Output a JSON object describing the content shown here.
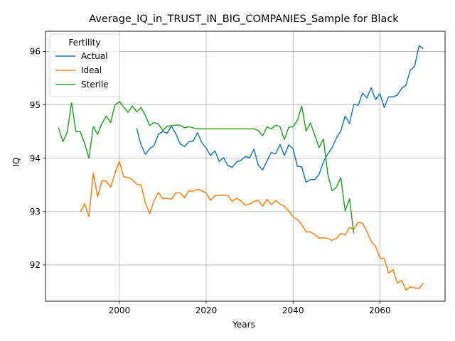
{
  "chart_data": {
    "type": "line",
    "title": "Average_IQ_in_TRUST_IN_BIG_COMPANIES_Sample for Black",
    "xlabel": "Years",
    "ylabel": "IQ",
    "xlim": [
      1983,
      2075
    ],
    "ylim": [
      91.32,
      96.38
    ],
    "xticks": [
      2000,
      2020,
      2040,
      2060
    ],
    "yticks": [
      92,
      93,
      94,
      95,
      96
    ],
    "grid": true,
    "legend": {
      "title": "Fertility",
      "position": "top-left"
    },
    "series": [
      {
        "name": "Actual",
        "color": "#1f77b4",
        "x": [
          2004,
          2005,
          2006,
          2007,
          2008,
          2009,
          2010,
          2011,
          2012,
          2013,
          2014,
          2015,
          2016,
          2017,
          2018,
          2019,
          2020,
          2021,
          2022,
          2023,
          2024,
          2025,
          2026,
          2027,
          2028,
          2029,
          2030,
          2031,
          2032,
          2033,
          2034,
          2035,
          2036,
          2037,
          2038,
          2039,
          2040,
          2041,
          2042,
          2043,
          2044,
          2045,
          2046,
          2047,
          2048,
          2049,
          2050,
          2051,
          2052,
          2053,
          2054,
          2055,
          2056,
          2057,
          2058,
          2059,
          2060,
          2061,
          2062,
          2063,
          2064,
          2065,
          2066,
          2067,
          2068,
          2069,
          2070
        ],
        "y": [
          94.56,
          94.25,
          94.07,
          94.18,
          94.24,
          94.45,
          94.5,
          94.47,
          94.6,
          94.46,
          94.27,
          94.22,
          94.31,
          94.32,
          94.48,
          94.29,
          94.19,
          94.05,
          94.14,
          93.94,
          94.01,
          93.86,
          93.83,
          93.93,
          93.96,
          94.03,
          94.01,
          94.17,
          93.87,
          93.78,
          93.95,
          94.11,
          94.08,
          94.26,
          94.05,
          94.25,
          94.18,
          93.85,
          93.84,
          93.55,
          93.6,
          93.6,
          93.7,
          93.93,
          94.08,
          94.2,
          94.38,
          94.51,
          94.79,
          94.65,
          95.01,
          94.99,
          95.22,
          95.13,
          95.32,
          95.1,
          95.21,
          94.95,
          95.15,
          95.15,
          95.18,
          95.31,
          95.37,
          95.65,
          95.72,
          96.11,
          96.05
        ]
      },
      {
        "name": "Ideal",
        "color": "#ff7f0e",
        "x": [
          1991,
          1992,
          1993,
          1994,
          1995,
          1996,
          1997,
          1998,
          1999,
          2000,
          2001,
          2002,
          2003,
          2004,
          2005,
          2006,
          2007,
          2008,
          2009,
          2010,
          2011,
          2012,
          2013,
          2014,
          2015,
          2016,
          2017,
          2018,
          2019,
          2020,
          2021,
          2022,
          2023,
          2024,
          2025,
          2026,
          2027,
          2028,
          2029,
          2030,
          2031,
          2032,
          2033,
          2034,
          2035,
          2036,
          2037,
          2038,
          2039,
          2040,
          2041,
          2042,
          2043,
          2044,
          2045,
          2046,
          2047,
          2048,
          2049,
          2050,
          2051,
          2052,
          2053,
          2054,
          2055,
          2056,
          2057,
          2058,
          2059,
          2060,
          2061,
          2062,
          2063,
          2064,
          2065,
          2066,
          2067,
          2068,
          2069,
          2070
        ],
        "y": [
          92.99,
          93.15,
          92.91,
          93.72,
          93.28,
          93.58,
          93.57,
          93.46,
          93.72,
          93.94,
          93.65,
          93.64,
          93.6,
          93.51,
          93.5,
          93.16,
          92.96,
          93.21,
          93.36,
          93.24,
          93.25,
          93.23,
          93.35,
          93.35,
          93.26,
          93.39,
          93.38,
          93.42,
          93.39,
          93.35,
          93.21,
          93.3,
          93.3,
          93.31,
          93.3,
          93.19,
          93.25,
          93.2,
          93.12,
          93.14,
          93.19,
          93.21,
          93.1,
          93.23,
          93.13,
          93.21,
          93.14,
          93.1,
          93.01,
          92.9,
          92.85,
          92.76,
          92.62,
          92.62,
          92.57,
          92.5,
          92.51,
          92.5,
          92.46,
          92.5,
          92.59,
          92.56,
          92.7,
          92.67,
          92.8,
          92.78,
          92.63,
          92.44,
          92.35,
          92.13,
          92.12,
          91.85,
          91.91,
          91.66,
          91.71,
          91.53,
          91.59,
          91.57,
          91.56,
          91.66
        ]
      },
      {
        "name": "Sterile",
        "color": "#2ca02c",
        "x": [
          1986,
          1987,
          1988,
          1989,
          1990,
          1991,
          1992,
          1993,
          1994,
          1995,
          1996,
          1997,
          1998,
          1999,
          2000,
          2001,
          2002,
          2003,
          2004,
          2005,
          2006,
          2007,
          2008,
          2009,
          2010,
          2011,
          2012,
          2013,
          2014,
          2015,
          2016,
          2017,
          2018,
          2019,
          2020,
          2021,
          2022,
          2023,
          2024,
          2025,
          2026,
          2027,
          2028,
          2029,
          2030,
          2031,
          2032,
          2033,
          2034,
          2035,
          2036,
          2037,
          2038,
          2039,
          2040,
          2041,
          2042,
          2043,
          2044,
          2045,
          2046,
          2047,
          2048,
          2049,
          2050,
          2051,
          2052,
          2053,
          2054
        ],
        "y": [
          94.57,
          94.31,
          94.49,
          95.04,
          94.5,
          94.5,
          94.28,
          94.0,
          94.59,
          94.45,
          94.65,
          94.79,
          94.67,
          95.0,
          95.06,
          94.96,
          94.86,
          94.98,
          94.87,
          94.95,
          94.8,
          94.61,
          94.67,
          94.64,
          94.52,
          94.6,
          94.61,
          94.62,
          94.62,
          94.57,
          94.59,
          94.57,
          94.55,
          94.55,
          94.55,
          94.55,
          94.55,
          94.55,
          94.55,
          94.55,
          94.55,
          94.55,
          94.55,
          94.55,
          94.55,
          94.55,
          94.52,
          94.42,
          94.59,
          94.55,
          94.62,
          94.59,
          94.35,
          94.58,
          94.59,
          94.71,
          94.98,
          94.51,
          94.66,
          94.43,
          94.2,
          94.36,
          93.7,
          93.39,
          93.46,
          93.64,
          93.01,
          93.24,
          92.59
        ]
      }
    ]
  }
}
